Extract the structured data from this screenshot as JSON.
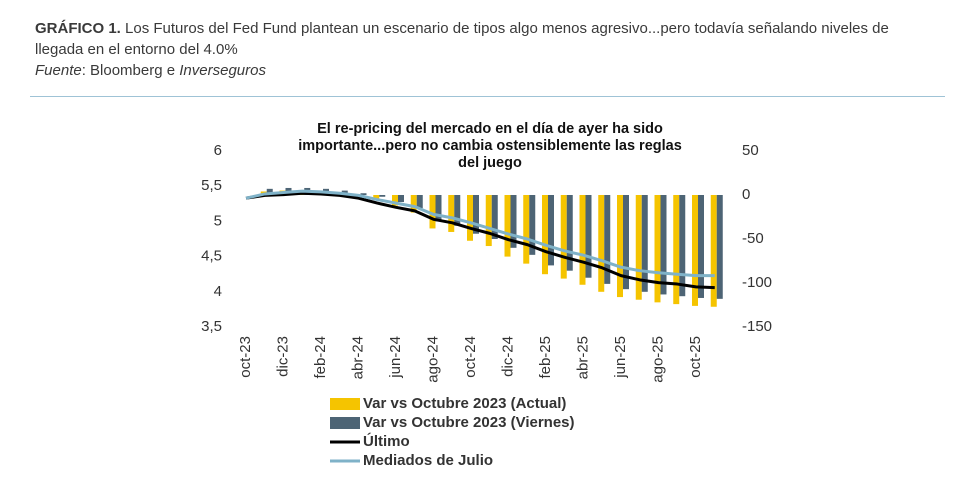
{
  "header": {
    "title_label": "GRÁFICO 1.",
    "title_text": "Los Futuros del Fed Fund plantean un escenario de tipos algo menos agresivo...pero todavía señalando niveles de llegada en el entorno del 4.0%",
    "source_label": "Fuente",
    "source_text": ": Bloomberg e ",
    "source_org": "Inverseguros"
  },
  "chart_data": {
    "type": "combo",
    "title": [
      "El re-pricing  del mercado  en el día de ayer ha sido",
      "importante...pero no cambia ostensiblemente las reglas",
      "del juego"
    ],
    "categories": [
      "oct-23",
      null,
      "dic-23",
      null,
      "feb-24",
      null,
      "abr-24",
      null,
      "jun-24",
      null,
      "ago-24",
      null,
      "oct-24",
      null,
      "dic-24",
      null,
      "feb-25",
      null,
      "abr-25",
      null,
      "jun-25",
      null,
      "ago-25",
      null,
      "oct-25",
      null
    ],
    "series": [
      {
        "name": "Var vs Octubre 2023 (Actual)",
        "type": "bar",
        "axis": "y2",
        "color": "#f5c400",
        "values": [
          0,
          4,
          5,
          5,
          5,
          3,
          0,
          -5,
          -12,
          -20,
          -38,
          -42,
          -52,
          -58,
          -70,
          -78,
          -90,
          -95,
          -102,
          -110,
          -116,
          -119,
          -122,
          -124,
          -126,
          -127
        ]
      },
      {
        "name": "Var vs  Octubre 2023 (Viernes)",
        "type": "bar",
        "axis": "y2",
        "color": "#4d6475",
        "values": [
          0,
          7,
          8,
          8,
          7,
          5,
          2,
          -2,
          -8,
          -15,
          -30,
          -35,
          -44,
          -50,
          -60,
          -68,
          -80,
          -86,
          -94,
          -101,
          -107,
          -110,
          -113,
          -115,
          -117,
          -118
        ]
      },
      {
        "name": "Último",
        "type": "line",
        "color": "#000000",
        "values": [
          5.33,
          5.37,
          5.38,
          5.4,
          5.39,
          5.37,
          5.33,
          5.26,
          5.2,
          5.15,
          5.03,
          4.98,
          4.9,
          4.83,
          4.74,
          4.67,
          4.57,
          4.49,
          4.42,
          4.34,
          4.23,
          4.17,
          4.13,
          4.11,
          4.07,
          4.06
        ]
      },
      {
        "name": "Mediados de Julio",
        "type": "line",
        "color": "#7fb2c8",
        "values": [
          5.33,
          5.39,
          5.41,
          5.43,
          5.42,
          5.4,
          5.37,
          5.31,
          5.26,
          5.21,
          5.1,
          5.05,
          4.98,
          4.9,
          4.82,
          4.75,
          4.66,
          4.58,
          4.52,
          4.44,
          4.35,
          4.3,
          4.27,
          4.25,
          4.23,
          4.23
        ]
      }
    ],
    "ylim": [
      3.5,
      6
    ],
    "yticks": [
      {
        "value": 3.5,
        "label": "3,5"
      },
      4,
      {
        "value": 4.5,
        "label": "4,5"
      },
      5,
      {
        "value": 5.5,
        "label": "5,5"
      },
      6
    ],
    "y2lim": [
      -150,
      50
    ],
    "y2ticks": [
      -150,
      -100,
      -50,
      0,
      50
    ],
    "grid": false
  }
}
